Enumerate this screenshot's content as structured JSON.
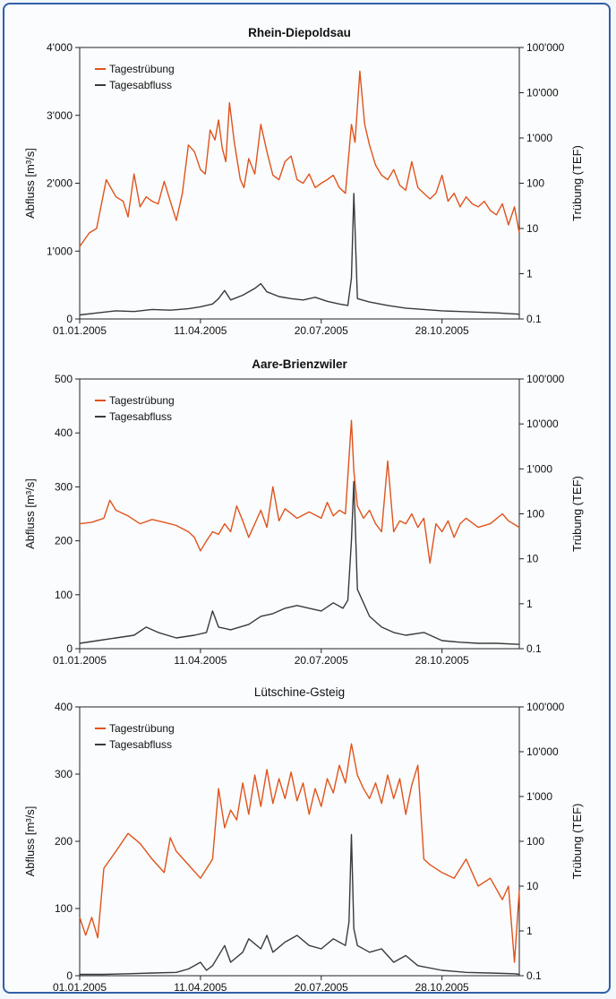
{
  "colors": {
    "turbidity": "#e0531c",
    "discharge": "#3a3a3a",
    "frame": "#2f5fa6"
  },
  "chart_data": [
    {
      "type": "line",
      "title": "Rhein-Diepoldsau",
      "title_bold": true,
      "ylabel_left": "Abfluss [m³/s]",
      "ylabel_right": "Trübung (TEF)",
      "left_axis": {
        "min": 0,
        "max": 4000,
        "ticks": [
          0,
          1000,
          2000,
          3000,
          4000
        ],
        "tick_labels": [
          "0",
          "1'000",
          "2'000",
          "3'000",
          "4'000"
        ]
      },
      "right_axis": {
        "scale": "log",
        "min": 0.1,
        "max": 100000,
        "ticks": [
          0.1,
          1,
          10,
          100,
          1000,
          10000,
          100000
        ],
        "tick_labels": [
          "0.1",
          "1",
          "10",
          "100",
          "1'000",
          "10'000",
          "100'000"
        ]
      },
      "x_ticks": [
        "01.01.2005",
        "11.04.2005",
        "20.07.2005",
        "28.10.2005"
      ],
      "x_tick_days": [
        0,
        100,
        200,
        300
      ],
      "x_range_days": [
        0,
        364
      ],
      "legend": [
        "Tagestrübung",
        "Tagesabfluss"
      ],
      "series": [
        {
          "name": "Tagestrübung",
          "axis": "right",
          "color": "#e0531c",
          "x": [
            0,
            8,
            14,
            22,
            30,
            36,
            40,
            45,
            50,
            55,
            60,
            65,
            70,
            75,
            80,
            85,
            90,
            95,
            100,
            104,
            108,
            112,
            115,
            118,
            121,
            124,
            128,
            133,
            136,
            140,
            145,
            150,
            155,
            160,
            165,
            170,
            175,
            180,
            185,
            190,
            195,
            200,
            205,
            210,
            215,
            220,
            225,
            228,
            232,
            236,
            240,
            245,
            250,
            255,
            260,
            265,
            270,
            275,
            280,
            285,
            290,
            295,
            300,
            305,
            310,
            315,
            320,
            325,
            330,
            335,
            340,
            345,
            350,
            355,
            360,
            364
          ],
          "y": [
            4,
            8,
            10,
            120,
            50,
            40,
            18,
            160,
            30,
            50,
            40,
            35,
            110,
            40,
            15,
            60,
            700,
            500,
            200,
            160,
            1500,
            900,
            2500,
            600,
            300,
            6000,
            800,
            120,
            80,
            350,
            160,
            2000,
            500,
            150,
            120,
            300,
            400,
            120,
            100,
            160,
            80,
            100,
            120,
            150,
            80,
            60,
            2000,
            800,
            30000,
            2000,
            700,
            250,
            150,
            120,
            200,
            90,
            70,
            300,
            80,
            60,
            45,
            60,
            150,
            40,
            60,
            30,
            50,
            35,
            30,
            40,
            25,
            20,
            35,
            12,
            30,
            8
          ]
        },
        {
          "name": "Tagesabfluss",
          "axis": "left",
          "color": "#3a3a3a",
          "x": [
            0,
            15,
            30,
            45,
            60,
            75,
            90,
            100,
            110,
            115,
            120,
            125,
            135,
            145,
            150,
            155,
            165,
            175,
            185,
            195,
            205,
            215,
            222,
            225,
            227,
            230,
            240,
            255,
            270,
            285,
            300,
            315,
            330,
            345,
            364
          ],
          "y": [
            60,
            90,
            120,
            110,
            140,
            130,
            150,
            180,
            220,
            300,
            420,
            280,
            350,
            450,
            520,
            400,
            330,
            300,
            280,
            320,
            260,
            220,
            200,
            600,
            1850,
            300,
            250,
            200,
            160,
            140,
            120,
            110,
            100,
            90,
            70
          ]
        }
      ]
    },
    {
      "type": "line",
      "title": "Aare-Brienzwiler",
      "title_bold": true,
      "ylabel_left": "Abfluss [m³/s]",
      "ylabel_right": "Trübung (TEF)",
      "left_axis": {
        "min": 0,
        "max": 500,
        "ticks": [
          0,
          100,
          200,
          300,
          400,
          500
        ],
        "tick_labels": [
          "0",
          "100",
          "200",
          "300",
          "400",
          "500"
        ]
      },
      "right_axis": {
        "scale": "log",
        "min": 0.1,
        "max": 100000,
        "ticks": [
          0.1,
          1,
          10,
          100,
          1000,
          10000,
          100000
        ],
        "tick_labels": [
          "0.1",
          "1",
          "10",
          "100",
          "1'000",
          "10'000",
          "100'000"
        ]
      },
      "x_ticks": [
        "01.01.2005",
        "11.04.2005",
        "20.07.2005",
        "28.10.2005"
      ],
      "x_tick_days": [
        0,
        100,
        200,
        300
      ],
      "x_range_days": [
        0,
        364
      ],
      "legend": [
        "Tagestrübung",
        "Tagesabfluss"
      ],
      "series": [
        {
          "name": "Tagestrübung",
          "axis": "right",
          "color": "#e0531c",
          "x": [
            0,
            10,
            20,
            25,
            30,
            40,
            50,
            60,
            70,
            80,
            90,
            95,
            100,
            105,
            110,
            115,
            120,
            125,
            130,
            135,
            140,
            145,
            150,
            155,
            160,
            165,
            170,
            180,
            190,
            200,
            205,
            210,
            215,
            220,
            225,
            227,
            230,
            235,
            240,
            245,
            250,
            255,
            260,
            265,
            270,
            275,
            280,
            285,
            290,
            295,
            300,
            305,
            310,
            315,
            320,
            330,
            340,
            350,
            355,
            364
          ],
          "y": [
            60,
            65,
            80,
            200,
            120,
            90,
            60,
            75,
            65,
            55,
            40,
            30,
            15,
            25,
            40,
            35,
            60,
            40,
            150,
            70,
            30,
            60,
            120,
            50,
            400,
            70,
            130,
            80,
            110,
            80,
            180,
            90,
            120,
            100,
            12000,
            900,
            150,
            80,
            120,
            60,
            40,
            1500,
            40,
            70,
            60,
            100,
            50,
            80,
            8,
            60,
            40,
            70,
            30,
            60,
            80,
            50,
            60,
            100,
            70,
            50
          ]
        },
        {
          "name": "Tagesabfluss",
          "axis": "left",
          "color": "#3a3a3a",
          "x": [
            0,
            15,
            30,
            45,
            55,
            65,
            80,
            95,
            105,
            110,
            115,
            125,
            140,
            150,
            160,
            170,
            180,
            190,
            200,
            210,
            218,
            222,
            225,
            227,
            230,
            240,
            250,
            260,
            270,
            285,
            300,
            315,
            330,
            345,
            364
          ],
          "y": [
            10,
            15,
            20,
            25,
            40,
            30,
            20,
            25,
            30,
            70,
            40,
            35,
            45,
            60,
            65,
            75,
            80,
            75,
            70,
            85,
            75,
            90,
            200,
            310,
            110,
            60,
            40,
            30,
            25,
            30,
            15,
            12,
            10,
            10,
            8
          ]
        }
      ]
    },
    {
      "type": "line",
      "title": "Lütschine-Gsteig",
      "title_bold": false,
      "ylabel_left": "Abfluss [m³/s]",
      "ylabel_right": "Trübung (TEF)",
      "left_axis": {
        "min": 0,
        "max": 400,
        "ticks": [
          0,
          100,
          200,
          300,
          400
        ],
        "tick_labels": [
          "0",
          "100",
          "200",
          "300",
          "400"
        ]
      },
      "right_axis": {
        "scale": "log",
        "min": 0.1,
        "max": 100000,
        "ticks": [
          0.1,
          1,
          10,
          100,
          1000,
          10000,
          100000
        ],
        "tick_labels": [
          "0.1",
          "1",
          "10",
          "100",
          "1'000",
          "10'000",
          "100'000"
        ]
      },
      "x_ticks": [
        "01.01.2005",
        "11.04.2005",
        "20.07.2005",
        "28.10.2005"
      ],
      "x_tick_days": [
        0,
        100,
        200,
        300
      ],
      "x_range_days": [
        0,
        364
      ],
      "legend": [
        "Tagestrübung",
        "Tagesabfluss"
      ],
      "series": [
        {
          "name": "Tagestrübung",
          "axis": "right",
          "color": "#e0531c",
          "x": [
            0,
            5,
            10,
            15,
            20,
            30,
            40,
            50,
            60,
            70,
            75,
            80,
            90,
            100,
            110,
            115,
            120,
            125,
            130,
            135,
            140,
            145,
            150,
            155,
            160,
            165,
            170,
            175,
            180,
            185,
            190,
            195,
            200,
            205,
            210,
            215,
            220,
            225,
            230,
            235,
            240,
            245,
            250,
            255,
            260,
            265,
            270,
            275,
            280,
            285,
            290,
            300,
            310,
            320,
            330,
            340,
            350,
            355,
            360,
            364
          ],
          "y": [
            2,
            0.8,
            2,
            0.7,
            25,
            60,
            150,
            90,
            40,
            20,
            120,
            60,
            30,
            15,
            40,
            1500,
            200,
            500,
            300,
            2000,
            400,
            3000,
            600,
            4000,
            700,
            2500,
            900,
            3500,
            800,
            2000,
            400,
            1500,
            600,
            2500,
            1200,
            5000,
            2000,
            15000,
            3000,
            1500,
            900,
            2000,
            700,
            3000,
            900,
            2500,
            400,
            1800,
            5000,
            40,
            30,
            20,
            15,
            40,
            10,
            15,
            5,
            10,
            0.2,
            8
          ]
        },
        {
          "name": "Tagesabfluss",
          "axis": "left",
          "color": "#3a3a3a",
          "x": [
            0,
            20,
            40,
            60,
            80,
            90,
            100,
            105,
            110,
            120,
            125,
            135,
            140,
            150,
            155,
            160,
            170,
            180,
            190,
            200,
            210,
            220,
            223,
            225,
            227,
            230,
            240,
            250,
            260,
            270,
            280,
            300,
            320,
            340,
            360,
            364
          ],
          "y": [
            2,
            2,
            3,
            4,
            5,
            10,
            20,
            8,
            15,
            45,
            20,
            35,
            55,
            40,
            60,
            35,
            50,
            60,
            45,
            40,
            55,
            45,
            80,
            210,
            70,
            45,
            35,
            40,
            20,
            30,
            15,
            8,
            5,
            4,
            3,
            2
          ]
        }
      ]
    }
  ]
}
